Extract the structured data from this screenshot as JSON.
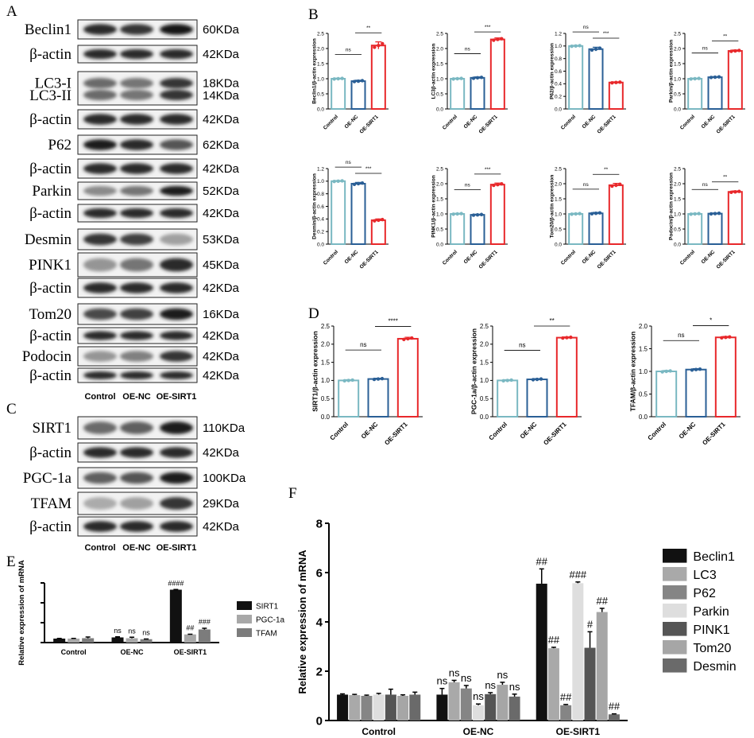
{
  "panel_labels": [
    "A",
    "B",
    "C",
    "D",
    "E",
    "F"
  ],
  "panel_A": {
    "lanes": [
      "Control",
      "OE-NC",
      "OE-SIRT1"
    ],
    "rows": [
      {
        "label": "Beclin1",
        "kda": "60KDa",
        "bands": [
          0.9,
          0.85,
          1.0
        ]
      },
      {
        "label": "β-actin",
        "kda": "42KDa",
        "bands": [
          0.9,
          0.9,
          0.9
        ]
      },
      {
        "label": "LC3-I",
        "label2": "LC3-II",
        "kda": "18KDa",
        "kda2": "14KDa",
        "bands": [
          0.6,
          0.55,
          0.85
        ],
        "double": true
      },
      {
        "label": "β-actin",
        "kda": "42KDa",
        "bands": [
          0.9,
          0.9,
          0.9
        ]
      },
      {
        "label": "P62",
        "kda": "62KDa",
        "bands": [
          0.95,
          0.9,
          0.7
        ]
      },
      {
        "label": "β-actin",
        "kda": "42KDa",
        "bands": [
          0.9,
          0.9,
          0.9
        ]
      },
      {
        "label": "Parkin",
        "kda": "52KDa",
        "bands": [
          0.45,
          0.55,
          0.95
        ]
      },
      {
        "label": "β-actin",
        "kda": "42KDa",
        "bands": [
          0.9,
          0.9,
          0.9
        ]
      },
      {
        "label": "Desmin",
        "kda": "53KDa",
        "bands": [
          0.85,
          0.8,
          0.35
        ]
      },
      {
        "label": "PINK1",
        "kda": "45KDa",
        "bands": [
          0.4,
          0.55,
          0.9
        ]
      },
      {
        "label": "β-actin",
        "kda": "42KDa",
        "bands": [
          0.9,
          0.9,
          0.9
        ]
      },
      {
        "label": "Tom20",
        "kda": "16KDa",
        "bands": [
          0.75,
          0.8,
          0.95
        ]
      },
      {
        "label": "β-actin",
        "kda": "42KDa",
        "bands": [
          0.9,
          0.9,
          0.9
        ]
      },
      {
        "label": "Podocin",
        "kda": "42KDa",
        "bands": [
          0.4,
          0.5,
          0.85
        ]
      },
      {
        "label": "β-actin",
        "kda": "42KDa",
        "bands": [
          0.9,
          0.9,
          0.9
        ]
      }
    ]
  },
  "panel_C": {
    "lanes": [
      "Control",
      "OE-NC",
      "OE-SIRT1"
    ],
    "rows": [
      {
        "label": "SIRT1",
        "kda": "110KDa",
        "bands": [
          0.6,
          0.65,
          0.95
        ]
      },
      {
        "label": "β-actin",
        "kda": "42KDa",
        "bands": [
          0.9,
          0.9,
          0.9
        ]
      },
      {
        "label": "PGC-1a",
        "kda": "100KDa",
        "bands": [
          0.65,
          0.7,
          0.95
        ]
      },
      {
        "label": "TFAM",
        "kda": "29KDa",
        "bands": [
          0.3,
          0.35,
          0.85
        ]
      },
      {
        "label": "β-actin",
        "kda": "42KDa",
        "bands": [
          0.9,
          0.9,
          0.9
        ]
      }
    ]
  },
  "colors": {
    "control": "#7ab8c2",
    "oe_nc": "#2a5f96",
    "oe_sirt1": "#e8282b"
  },
  "chart_data": [
    {
      "id": "B1",
      "type": "bar",
      "categories": [
        "Control",
        "OE-NC",
        "OE-SIRT1"
      ],
      "values": [
        1.0,
        0.92,
        2.1
      ],
      "errors": [
        0.02,
        0.03,
        0.12
      ],
      "ylabel": "Beclin1/β-actin expression",
      "ylim": [
        0,
        2.5
      ],
      "yticks": [
        0.0,
        0.5,
        1.0,
        1.5,
        2.0,
        2.5
      ],
      "sig": [
        {
          "from": 0,
          "to": 1,
          "label": "ns"
        },
        {
          "from": 1,
          "to": 2,
          "label": "**"
        }
      ]
    },
    {
      "id": "B2",
      "type": "bar",
      "categories": [
        "Control",
        "OE-NC",
        "OE-SIRT1"
      ],
      "values": [
        1.0,
        1.03,
        2.3
      ],
      "errors": [
        0.02,
        0.03,
        0.05
      ],
      "ylabel": "LC3β-actin expression",
      "ylim": [
        0,
        2.5
      ],
      "yticks": [
        0.0,
        0.5,
        1.0,
        1.5,
        2.0,
        2.5
      ],
      "sig": [
        {
          "from": 0,
          "to": 1,
          "label": "ns"
        },
        {
          "from": 1,
          "to": 2,
          "label": "***"
        }
      ]
    },
    {
      "id": "B3",
      "type": "bar",
      "categories": [
        "Control",
        "OE-NC",
        "OE-SIRT1"
      ],
      "values": [
        1.0,
        0.95,
        0.42
      ],
      "errors": [
        0.01,
        0.03,
        0.01
      ],
      "ylabel": "P62/β-actin expression",
      "ylim": [
        0,
        1.2
      ],
      "yticks": [
        0.0,
        0.2,
        0.4,
        0.6,
        0.8,
        1.0,
        1.2
      ],
      "sig": [
        {
          "from": 0,
          "to": 1,
          "label": "ns"
        },
        {
          "from": 1,
          "to": 2,
          "label": "***"
        }
      ]
    },
    {
      "id": "B4",
      "type": "bar",
      "categories": [
        "Control",
        "OE-NC",
        "OE-SIRT1"
      ],
      "values": [
        1.0,
        1.05,
        1.92
      ],
      "errors": [
        0.02,
        0.02,
        0.03
      ],
      "ylabel": "Parkin/β-actin expression",
      "ylim": [
        0,
        2.5
      ],
      "yticks": [
        0.0,
        0.5,
        1.0,
        1.5,
        2.0,
        2.5
      ],
      "sig": [
        {
          "from": 0,
          "to": 1,
          "label": "ns"
        },
        {
          "from": 1,
          "to": 2,
          "label": "**"
        }
      ]
    },
    {
      "id": "B5",
      "type": "bar",
      "categories": [
        "Control",
        "OE-NC",
        "OE-SIRT1"
      ],
      "values": [
        1.0,
        0.96,
        0.38
      ],
      "errors": [
        0.01,
        0.02,
        0.02
      ],
      "ylabel": "Desmin/β-actin expression",
      "ylim": [
        0,
        1.2
      ],
      "yticks": [
        0.0,
        0.2,
        0.4,
        0.6,
        0.8,
        1.0,
        1.2
      ],
      "sig": [
        {
          "from": 0,
          "to": 1,
          "label": "ns"
        },
        {
          "from": 1,
          "to": 2,
          "label": "***"
        }
      ]
    },
    {
      "id": "B6",
      "type": "bar",
      "categories": [
        "Control",
        "OE-NC",
        "OE-SIRT1"
      ],
      "values": [
        1.0,
        0.97,
        1.97
      ],
      "errors": [
        0.02,
        0.02,
        0.05
      ],
      "ylabel": "PINK1/β-actin expression",
      "ylim": [
        0,
        2.5
      ],
      "yticks": [
        0.0,
        0.5,
        1.0,
        1.5,
        2.0,
        2.5
      ],
      "sig": [
        {
          "from": 0,
          "to": 1,
          "label": "ns"
        },
        {
          "from": 1,
          "to": 2,
          "label": "***"
        }
      ]
    },
    {
      "id": "B7",
      "type": "bar",
      "categories": [
        "Control",
        "OE-NC",
        "OE-SIRT1"
      ],
      "values": [
        1.0,
        1.02,
        1.95
      ],
      "errors": [
        0.02,
        0.03,
        0.06
      ],
      "ylabel": "Tom20/β-actin expression",
      "ylim": [
        0,
        2.5
      ],
      "yticks": [
        0.0,
        0.5,
        1.0,
        1.5,
        2.0,
        2.5
      ],
      "sig": [
        {
          "from": 0,
          "to": 1,
          "label": "ns"
        },
        {
          "from": 1,
          "to": 2,
          "label": "**"
        }
      ]
    },
    {
      "id": "B8",
      "type": "bar",
      "categories": [
        "Control",
        "OE-NC",
        "OE-SIRT1"
      ],
      "values": [
        1.0,
        1.01,
        1.73
      ],
      "errors": [
        0.02,
        0.02,
        0.03
      ],
      "ylabel": "Podocin/β-actin expression",
      "ylim": [
        0,
        2.5
      ],
      "yticks": [
        0.0,
        0.5,
        1.0,
        1.5,
        2.0,
        2.5
      ],
      "sig": [
        {
          "from": 0,
          "to": 1,
          "label": "ns"
        },
        {
          "from": 1,
          "to": 2,
          "label": "**"
        }
      ]
    },
    {
      "id": "D1",
      "type": "bar",
      "categories": [
        "Control",
        "OE-NC",
        "OE-SIRT1"
      ],
      "values": [
        1.0,
        1.04,
        2.15
      ],
      "errors": [
        0.02,
        0.02,
        0.04
      ],
      "ylabel": "SIRT1/β-actin expression",
      "ylim": [
        0,
        2.5
      ],
      "yticks": [
        0.0,
        0.5,
        1.0,
        1.5,
        2.0,
        2.5
      ],
      "sig": [
        {
          "from": 0,
          "to": 1,
          "label": "ns"
        },
        {
          "from": 1,
          "to": 2,
          "label": "****"
        }
      ]
    },
    {
      "id": "D2",
      "type": "bar",
      "categories": [
        "Control",
        "OE-NC",
        "OE-SIRT1"
      ],
      "values": [
        1.0,
        1.03,
        2.18
      ],
      "errors": [
        0.02,
        0.02,
        0.02
      ],
      "ylabel": "PGC-1a/β-actin expression",
      "ylim": [
        0,
        2.5
      ],
      "yticks": [
        0.0,
        0.5,
        1.0,
        1.5,
        2.0,
        2.5
      ],
      "sig": [
        {
          "from": 0,
          "to": 1,
          "label": "ns"
        },
        {
          "from": 1,
          "to": 2,
          "label": "**"
        }
      ]
    },
    {
      "id": "D3",
      "type": "bar",
      "categories": [
        "Control",
        "OE-NC",
        "OE-SIRT1"
      ],
      "values": [
        1.0,
        1.04,
        1.75
      ],
      "errors": [
        0.02,
        0.02,
        0.02
      ],
      "ylabel": "TFAM/β-actin expression",
      "ylim": [
        0,
        2.0
      ],
      "yticks": [
        0.0,
        0.5,
        1.0,
        1.5,
        2.0
      ],
      "sig": [
        {
          "from": 0,
          "to": 1,
          "label": "ns"
        },
        {
          "from": 1,
          "to": 2,
          "label": "*"
        }
      ]
    },
    {
      "id": "E",
      "type": "bar",
      "categories": [
        "Control",
        "OE-NC",
        "OE-SIRT1"
      ],
      "series": [
        {
          "name": "SIRT1",
          "color": "#111111",
          "values": [
            1.0,
            1.3,
            13.3
          ],
          "errors": [
            0.05,
            0.15,
            0.05
          ],
          "labels": [
            "",
            "ns",
            "####"
          ]
        },
        {
          "name": "PGC-1a",
          "color": "#a8a8a8",
          "values": [
            1.0,
            1.1,
            2.05
          ],
          "errors": [
            0.05,
            0.25,
            0.05
          ],
          "labels": [
            "",
            "ns",
            "##"
          ]
        },
        {
          "name": "TFAM",
          "color": "#7c7c7c",
          "values": [
            1.1,
            0.85,
            3.3
          ],
          "errors": [
            0.3,
            0.05,
            0.3
          ],
          "labels": [
            "",
            "ns",
            "###"
          ]
        }
      ],
      "ylabel": "Relative expression of mRNA",
      "ylim": [
        0,
        15
      ],
      "legend": "right"
    },
    {
      "id": "F",
      "type": "bar",
      "categories": [
        "Control",
        "OE-NC",
        "OE-SIRT1"
      ],
      "series": [
        {
          "name": "Beclin1",
          "color": "#111111",
          "values": [
            1.05,
            1.05,
            5.55
          ],
          "errors": [
            0.03,
            0.25,
            0.6
          ],
          "labels": [
            "",
            "ns",
            "##"
          ]
        },
        {
          "name": "LC3",
          "color": "#a9a9a9",
          "values": [
            1.03,
            1.55,
            2.93
          ],
          "errors": [
            0.03,
            0.08,
            0.04
          ],
          "labels": [
            "",
            "ns",
            "##"
          ]
        },
        {
          "name": "P62",
          "color": "#858585",
          "values": [
            1.0,
            1.3,
            0.62
          ],
          "errors": [
            0.03,
            0.12,
            0.03
          ],
          "labels": [
            "",
            "ns",
            "##"
          ]
        },
        {
          "name": "Parkin",
          "color": "#dedede",
          "values": [
            1.05,
            0.62,
            5.57
          ],
          "errors": [
            0.05,
            0.05,
            0.05
          ],
          "labels": [
            "",
            "ns",
            "###"
          ]
        },
        {
          "name": "PINK1",
          "color": "#555555",
          "values": [
            1.05,
            1.07,
            2.95
          ],
          "errors": [
            0.22,
            0.06,
            0.65
          ],
          "labels": [
            "",
            "ns",
            "#"
          ]
        },
        {
          "name": "Tom20",
          "color": "#a6a6a6",
          "values": [
            1.0,
            1.45,
            4.4
          ],
          "errors": [
            0.04,
            0.1,
            0.15
          ],
          "labels": [
            "",
            "ns",
            "##"
          ]
        },
        {
          "name": "Desmin",
          "color": "#6a6a6a",
          "values": [
            1.05,
            0.97,
            0.25
          ],
          "errors": [
            0.1,
            0.1,
            0.02
          ],
          "labels": [
            "",
            "ns",
            "##"
          ]
        }
      ],
      "ylabel": "Relative expression of mRNA",
      "ylim": [
        0,
        8
      ],
      "yticks": [
        0,
        2,
        4,
        6,
        8
      ],
      "legend": "right"
    }
  ]
}
